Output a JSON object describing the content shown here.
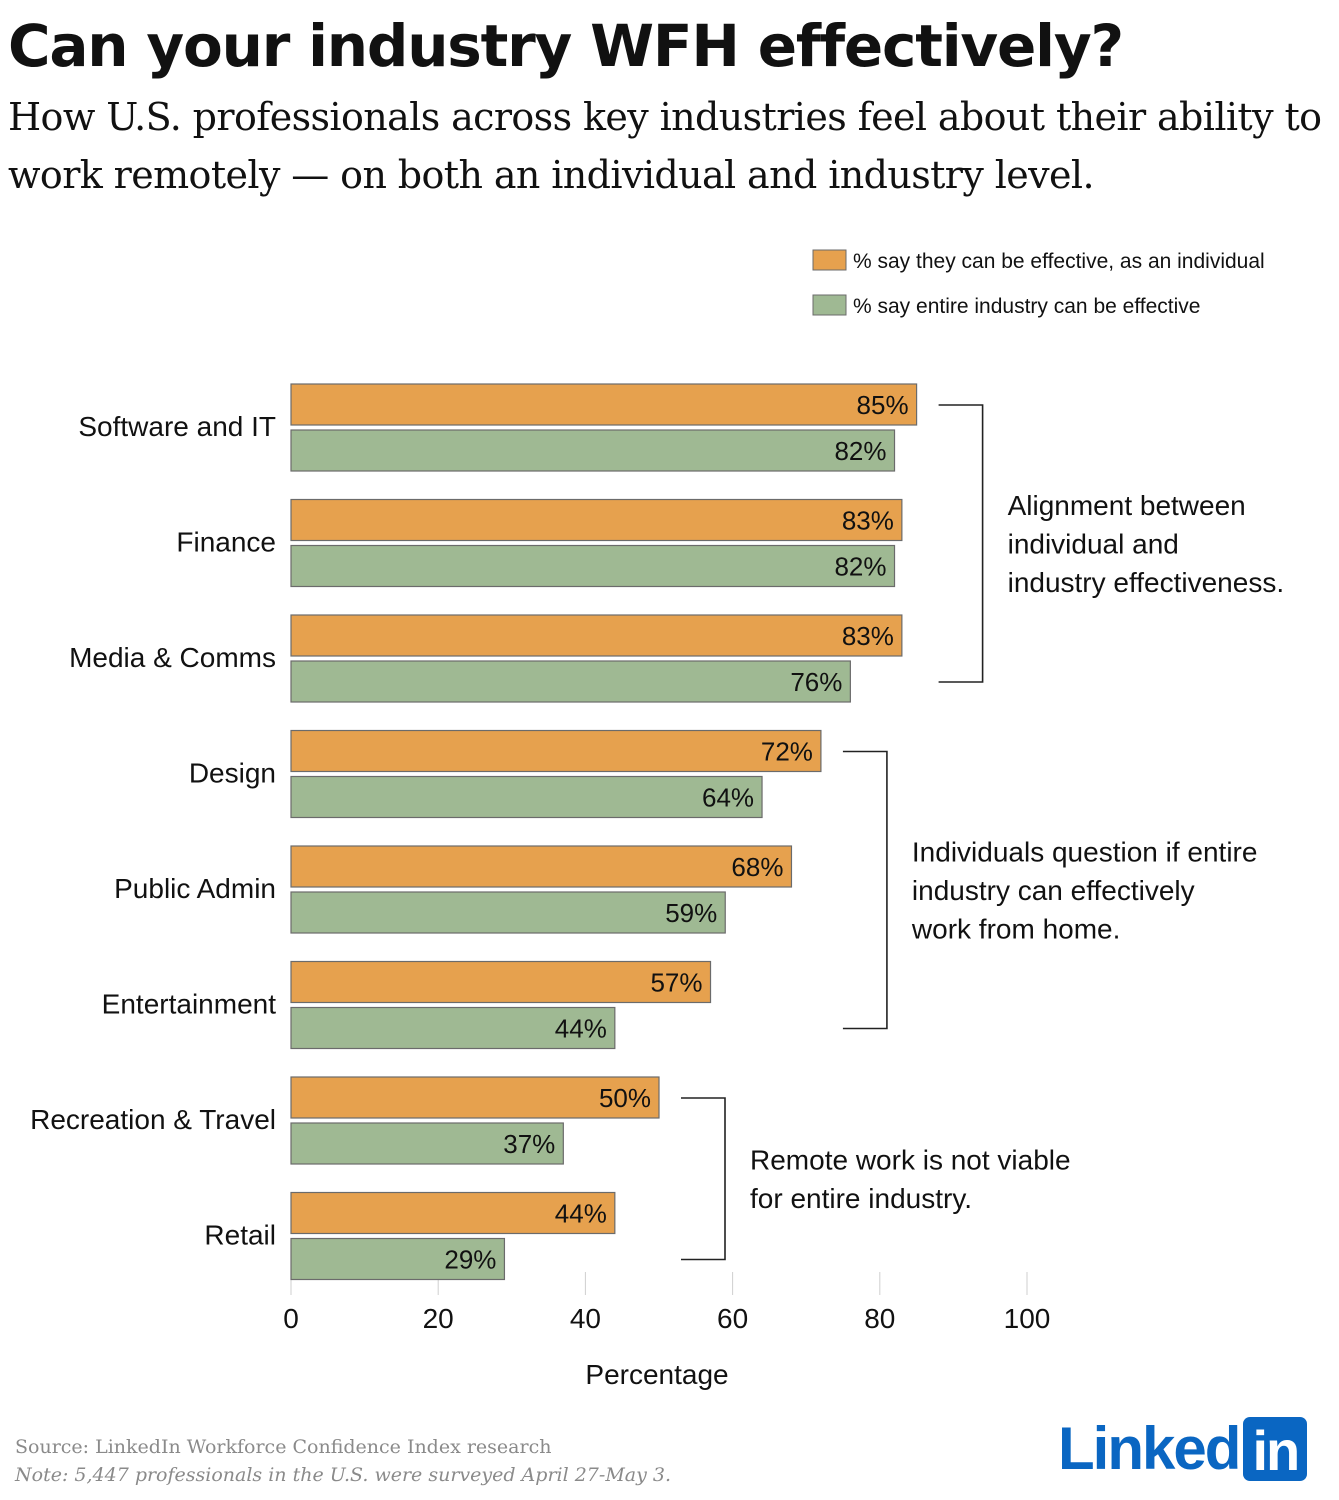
{
  "header": {
    "title": "Can your industry WFH effectively?",
    "subtitle": "How U.S. professionals across key industries feel about their ability to work remotely — on both an individual and industry level."
  },
  "colors": {
    "individual": "#e6a14e",
    "industry": "#9fb993",
    "outline": "#6b6b6b",
    "logo": "#0a66c2"
  },
  "chart_data": {
    "type": "bar",
    "orientation": "horizontal",
    "categories": [
      "Software and IT",
      "Finance",
      "Media & Comms",
      "Design",
      "Public Admin",
      "Entertainment",
      "Recreation & Travel",
      "Retail"
    ],
    "series": [
      {
        "name": "% say they can be effective, as an individual",
        "values": [
          85,
          83,
          83,
          72,
          68,
          57,
          50,
          44
        ],
        "labels": [
          "85%",
          "83%",
          "83%",
          "72%",
          "68%",
          "57%",
          "50%",
          "44%"
        ]
      },
      {
        "name": "% say entire industry can be effective",
        "values": [
          82,
          82,
          76,
          64,
          59,
          44,
          37,
          29
        ],
        "labels": [
          "82%",
          "82%",
          "76%",
          "64%",
          "59%",
          "44%",
          "37%",
          "29%"
        ]
      }
    ],
    "xlabel": "Percentage",
    "xlim": [
      0,
      100
    ],
    "xticks": [
      0,
      20,
      40,
      60,
      80,
      100
    ],
    "xtick_labels": [
      "0",
      "20",
      "40",
      "60",
      "80",
      "100"
    ],
    "legend_position": "top-right",
    "annotations": [
      {
        "start": 0,
        "end": 2,
        "lines": [
          "Alignment between",
          "individual and",
          "industry effectiveness."
        ]
      },
      {
        "start": 3,
        "end": 5,
        "lines": [
          "Individuals question if entire",
          "industry can effectively",
          "work from home."
        ]
      },
      {
        "start": 6,
        "end": 7,
        "lines": [
          "Remote work is not viable",
          "for entire industry."
        ]
      }
    ]
  },
  "footer": {
    "source": "Source: LinkedIn Workforce Confidence Index research",
    "note": "Note: 5,447 professionals in the U.S. were surveyed April 27-May 3.",
    "logo_text": "Linked",
    "logo_box": "in"
  }
}
